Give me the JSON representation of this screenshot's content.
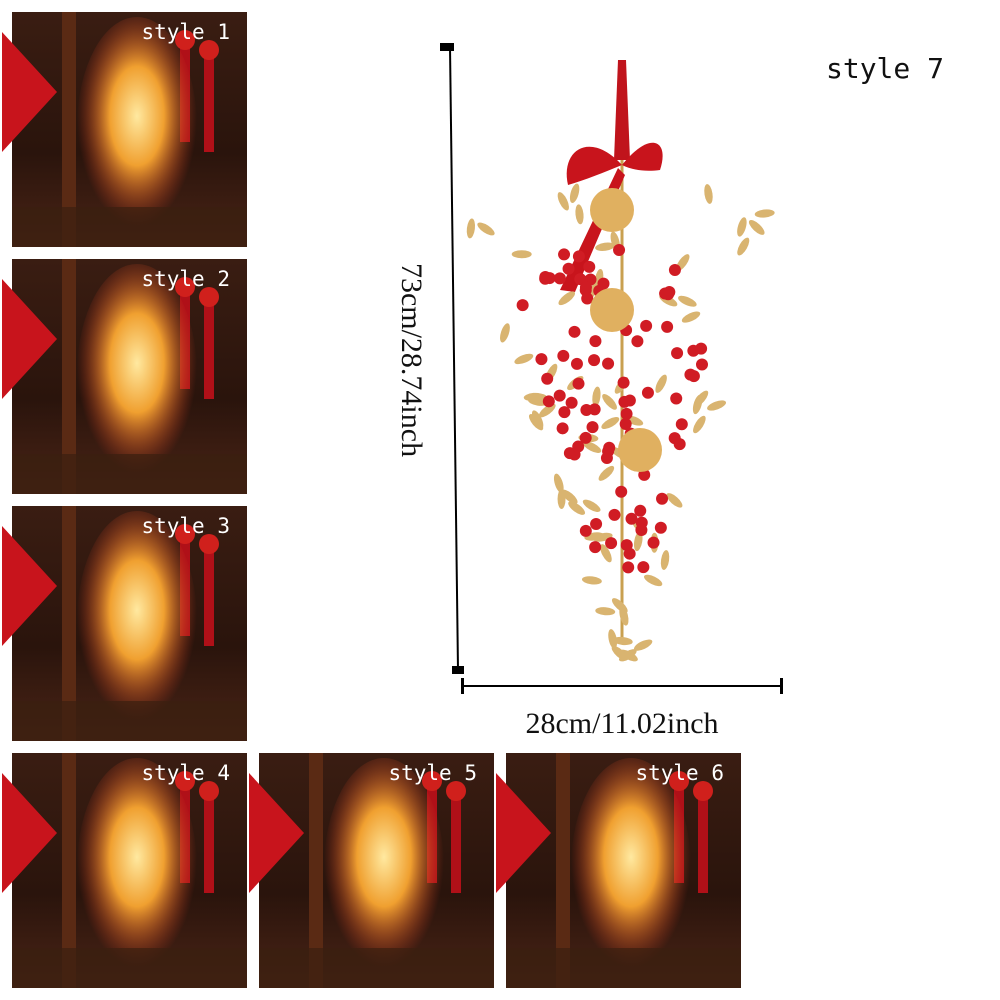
{
  "panels": [
    {
      "label": "style 1"
    },
    {
      "label": "style 2"
    },
    {
      "label": "style 3"
    },
    {
      "label": "style 4"
    },
    {
      "label": "style 5"
    },
    {
      "label": "style 6"
    }
  ],
  "featured": {
    "label": "style 7",
    "height_label": "73cm/28.74inch",
    "width_label": "28cm/11.02inch"
  }
}
